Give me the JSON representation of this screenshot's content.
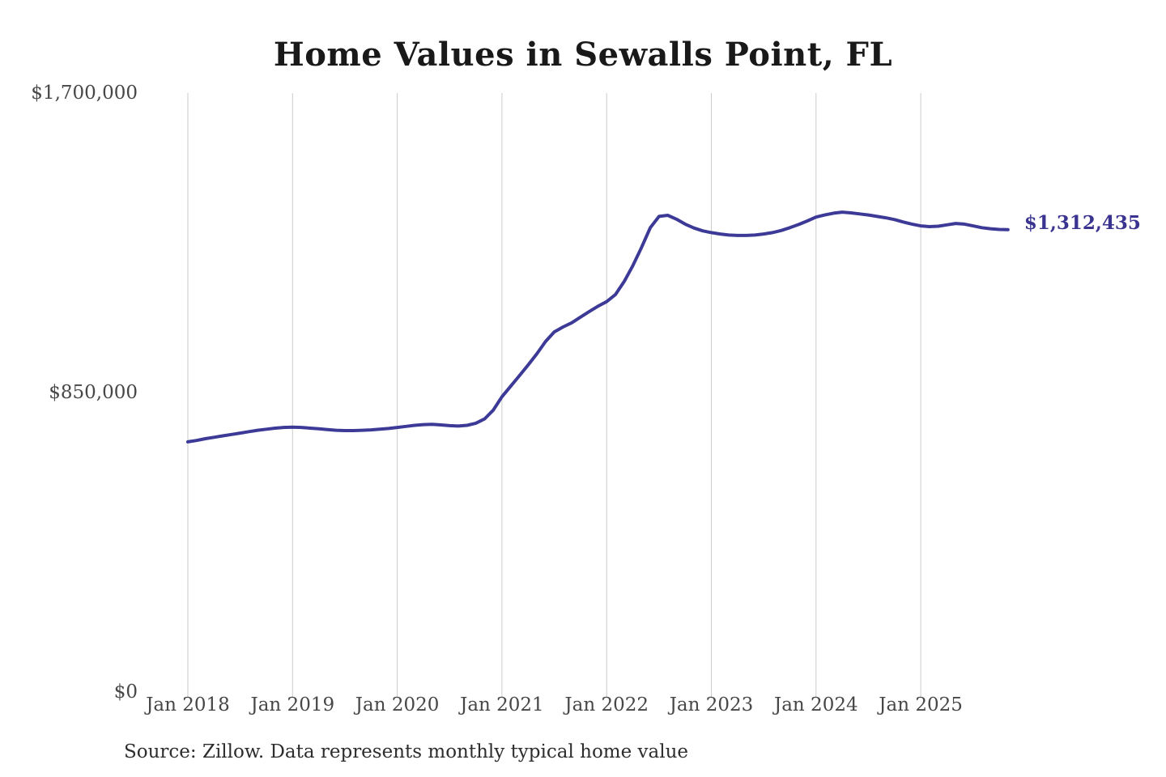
{
  "title": "Home Values in Sewalls Point, FL",
  "end_label": "$1,312,435",
  "source_note": "Source: Zillow. Data represents monthly typical home value",
  "colors": {
    "line": "#3c3a96",
    "end_label": "#3a3390",
    "grid": "#cbcbcb",
    "title": "#191919",
    "tick_text": "#474747",
    "source_text": "#2d2d2d",
    "background": "#ffffff"
  },
  "chart_data": {
    "type": "line",
    "title": "Home Values in Sewalls Point, FL",
    "xlabel": "",
    "ylabel": "",
    "ylim": [
      0,
      1700000
    ],
    "grid": "vertical-only",
    "legend": "none",
    "x_ticks": [
      "Jan 2018",
      "Jan 2019",
      "Jan 2020",
      "Jan 2021",
      "Jan 2022",
      "Jan 2023",
      "Jan 2024",
      "Jan 2025"
    ],
    "y_ticks": [
      {
        "label": "$1,700,000",
        "value": 1700000
      },
      {
        "label": "$850,000",
        "value": 850000
      },
      {
        "label": "$0",
        "value": 0
      }
    ],
    "series": [
      {
        "name": "Monthly typical home value",
        "start_month": "2018-01",
        "end_month": "2025-11",
        "latest_value": 1312435,
        "values": [
          710000,
          714000,
          719000,
          723000,
          727000,
          731000,
          735000,
          739000,
          743000,
          746000,
          749000,
          751000,
          752000,
          751000,
          749000,
          747000,
          745000,
          743000,
          742000,
          742000,
          743000,
          744000,
          746000,
          748000,
          751000,
          754000,
          757000,
          759000,
          760000,
          758000,
          756000,
          755000,
          757000,
          763000,
          775000,
          800000,
          838000,
          868000,
          898000,
          928000,
          960000,
          995000,
          1022000,
          1036000,
          1048000,
          1064000,
          1080000,
          1095000,
          1108000,
          1128000,
          1165000,
          1210000,
          1262000,
          1318000,
          1350000,
          1353000,
          1342000,
          1328000,
          1317000,
          1309000,
          1304000,
          1300000,
          1297000,
          1296000,
          1296000,
          1297000,
          1300000,
          1304000,
          1310000,
          1318000,
          1327000,
          1337000,
          1348000,
          1354000,
          1359000,
          1362000,
          1360000,
          1357000,
          1354000,
          1350000,
          1346000,
          1341000,
          1334000,
          1328000,
          1323000,
          1321000,
          1322000,
          1326000,
          1330000,
          1328000,
          1323000,
          1318000,
          1315000,
          1313000,
          1312435
        ]
      }
    ]
  }
}
